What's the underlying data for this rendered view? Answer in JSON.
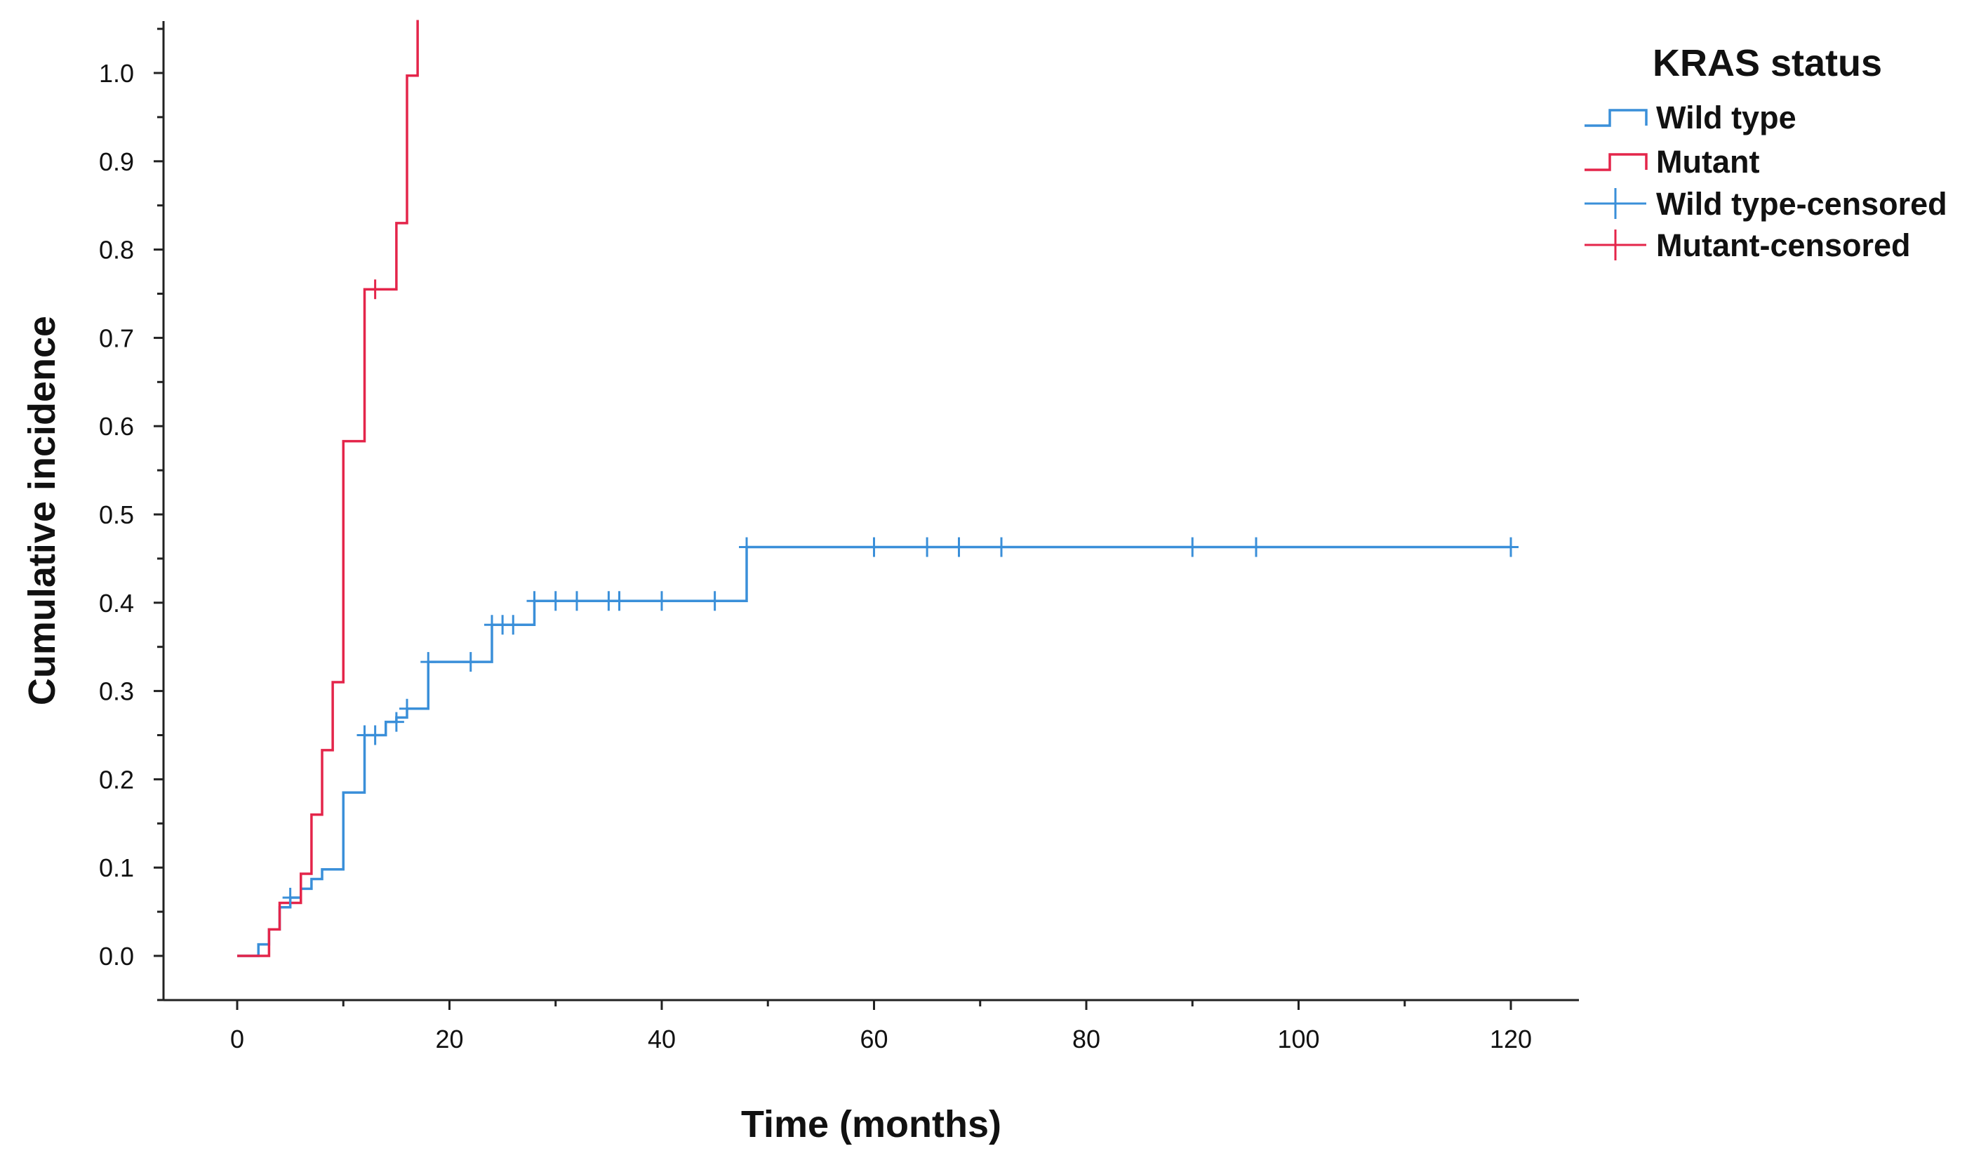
{
  "chart_data": {
    "type": "line",
    "step": "post",
    "xlabel": "Time (months)",
    "ylabel": "Cumulative incidence",
    "xlim": [
      -7,
      125
    ],
    "ylim": [
      -0.05,
      1.06
    ],
    "xticks": [
      0,
      20,
      40,
      60,
      80,
      100,
      120
    ],
    "xminor": [
      10,
      30,
      50,
      70,
      90,
      110
    ],
    "yticks": [
      0.0,
      0.1,
      0.2,
      0.3,
      0.4,
      0.5,
      0.6,
      0.7,
      0.8,
      0.9,
      1.0
    ],
    "yminor": [
      0.05,
      0.15,
      0.25,
      0.35,
      0.45,
      0.55,
      0.65,
      0.75,
      0.85,
      0.95
    ],
    "legend": {
      "title": "KRAS status",
      "placement": "top-right",
      "entries": [
        "Wild type",
        "Mutant",
        "Wild type-censored",
        "Mutant-censored"
      ]
    },
    "series": [
      {
        "name": "Wild type",
        "color": "#3A8FD9",
        "x": [
          0,
          2,
          3,
          4,
          5,
          6,
          7,
          8,
          10,
          12,
          14,
          15,
          16,
          18,
          24,
          28,
          48,
          120
        ],
        "y": [
          0.0,
          0.013,
          0.03,
          0.055,
          0.066,
          0.076,
          0.087,
          0.098,
          0.185,
          0.25,
          0.265,
          0.27,
          0.28,
          0.333,
          0.375,
          0.402,
          0.463,
          0.463
        ]
      },
      {
        "name": "Mutant",
        "color": "#E4254A",
        "x": [
          0,
          3,
          4,
          6,
          7,
          8,
          9,
          10,
          12,
          15,
          16,
          17
        ],
        "y": [
          0.0,
          0.03,
          0.06,
          0.093,
          0.16,
          0.233,
          0.31,
          0.583,
          0.755,
          0.83,
          0.997,
          1.06
        ]
      }
    ],
    "censored": [
      {
        "name": "Wild type-censored",
        "color": "#3A8FD9",
        "x": [
          5,
          12,
          13,
          15,
          16,
          18,
          22,
          24,
          25,
          26,
          28,
          30,
          32,
          35,
          36,
          40,
          45,
          48,
          60,
          65,
          68,
          72,
          90,
          96,
          120
        ],
        "y": [
          0.066,
          0.25,
          0.25,
          0.265,
          0.28,
          0.333,
          0.333,
          0.375,
          0.375,
          0.375,
          0.402,
          0.402,
          0.402,
          0.402,
          0.402,
          0.402,
          0.402,
          0.463,
          0.463,
          0.463,
          0.463,
          0.463,
          0.463,
          0.463,
          0.463
        ]
      },
      {
        "name": "Mutant-censored",
        "color": "#E4254A",
        "x": [
          13
        ],
        "y": [
          0.755
        ]
      }
    ]
  }
}
